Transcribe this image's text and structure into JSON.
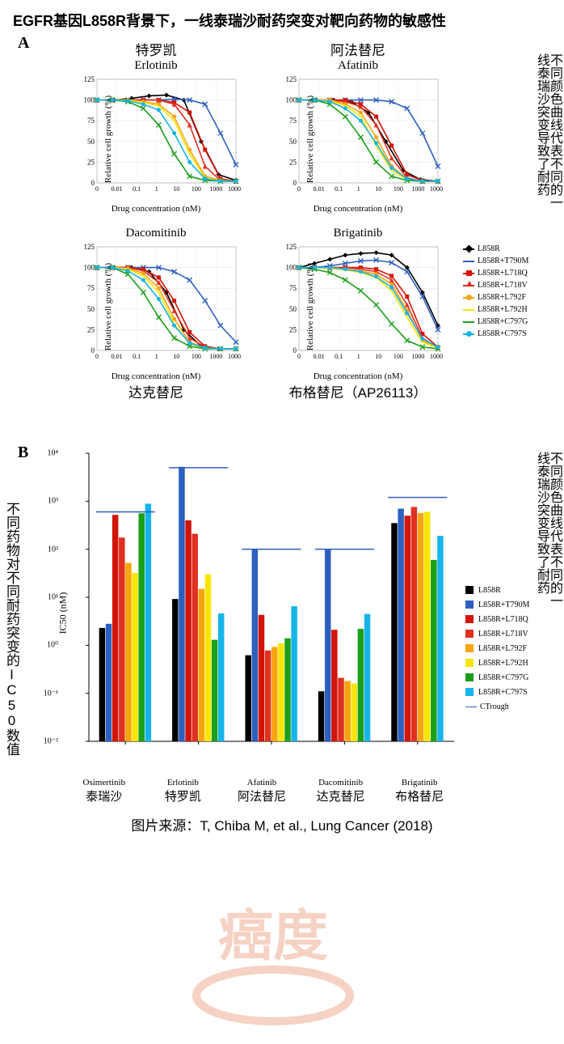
{
  "title": "EGFR基因L858R背景下，一线泰瑞沙耐药突变对靶向药物的敏感性",
  "panelA_label": "A",
  "panelB_label": "B",
  "side_note_text": "不同颜色曲线代表不同的一线泰瑞沙突变导致了耐药",
  "left_note_text": "不同药物对不同耐药突变的IC50数值",
  "source_label": "图片来源：T, Chiba M, et al., Lung Cancer (2018)",
  "watermark_text": "癌度",
  "watermark_color": "#e8906a",
  "axis": {
    "ylabel": "Relative cell growth (%)",
    "xlabel": "Drug concentration (nM)",
    "ylim": [
      0,
      125
    ],
    "yticks": [
      0,
      25,
      50,
      75,
      100,
      125
    ],
    "xlog_ticks": [
      "0",
      "0.01",
      "0.1",
      "1",
      "10",
      "100",
      "1000",
      "10000"
    ]
  },
  "series": [
    {
      "name": "L858R",
      "color": "#000000",
      "marker": "diamond"
    },
    {
      "name": "L858R+T790M",
      "color": "#2e5fbf",
      "marker": "x"
    },
    {
      "name": "L858R+L718Q",
      "color": "#d11507",
      "marker": "square"
    },
    {
      "name": "L858R+L718V",
      "color": "#e03020",
      "marker": "triangle"
    },
    {
      "name": "L858R+L792F",
      "color": "#f7a409",
      "marker": "circle"
    },
    {
      "name": "L858R+L792H",
      "color": "#f7e600",
      "marker": "none"
    },
    {
      "name": "L858R+C797G",
      "color": "#1aa01a",
      "marker": "x"
    },
    {
      "name": "L858R+C797S",
      "color": "#17b4e9",
      "marker": "circle"
    }
  ],
  "ctrough_label": "CTrough",
  "ctrough_color": "#2e5fbf",
  "panelA_charts": [
    {
      "title_cn": "特罗凯",
      "title_en": "Erlotinib",
      "bottom_cn": "",
      "curves": [
        [
          100,
          100,
          102,
          105,
          106,
          100,
          50,
          10,
          3
        ],
        [
          100,
          100,
          100,
          100,
          100,
          101,
          100,
          95,
          60,
          22
        ],
        [
          100,
          100,
          100,
          100,
          100,
          97,
          85,
          40,
          5,
          2
        ],
        [
          100,
          100,
          100,
          100,
          100,
          95,
          70,
          20,
          3,
          2
        ],
        [
          100,
          100,
          100,
          98,
          95,
          80,
          40,
          8,
          3,
          2
        ],
        [
          100,
          100,
          100,
          97,
          93,
          75,
          35,
          6,
          2,
          2
        ],
        [
          100,
          100,
          98,
          90,
          70,
          35,
          8,
          3,
          2,
          2
        ],
        [
          100,
          100,
          99,
          95,
          88,
          60,
          25,
          5,
          2,
          2
        ]
      ]
    },
    {
      "title_cn": "阿法替尼",
      "title_en": "Afatinib",
      "bottom_cn": "",
      "curves": [
        [
          100,
          100,
          100,
          98,
          85,
          50,
          15,
          4,
          2
        ],
        [
          100,
          100,
          100,
          100,
          100,
          100,
          98,
          90,
          60,
          20
        ],
        [
          100,
          100,
          100,
          100,
          95,
          80,
          45,
          10,
          3,
          2
        ],
        [
          100,
          100,
          100,
          98,
          92,
          70,
          30,
          6,
          2,
          2
        ],
        [
          100,
          100,
          100,
          95,
          85,
          55,
          20,
          5,
          2,
          2
        ],
        [
          100,
          100,
          99,
          93,
          80,
          45,
          15,
          4,
          2,
          2
        ],
        [
          100,
          100,
          95,
          80,
          55,
          25,
          8,
          3,
          2,
          2
        ],
        [
          100,
          100,
          98,
          90,
          75,
          48,
          18,
          5,
          2,
          2
        ]
      ]
    },
    {
      "title_cn": "",
      "title_en": "Dacomitinib",
      "bottom_cn": "达克替尼",
      "curves": [
        [
          100,
          100,
          100,
          95,
          70,
          25,
          5,
          2,
          2
        ],
        [
          100,
          100,
          100,
          100,
          100,
          95,
          85,
          60,
          30,
          10
        ],
        [
          100,
          100,
          100,
          98,
          88,
          60,
          22,
          5,
          2,
          2
        ],
        [
          100,
          100,
          100,
          96,
          82,
          48,
          15,
          4,
          2,
          2
        ],
        [
          100,
          100,
          99,
          93,
          75,
          38,
          10,
          3,
          2,
          2
        ],
        [
          100,
          100,
          98,
          90,
          70,
          32,
          8,
          2,
          2,
          2
        ],
        [
          100,
          100,
          92,
          70,
          40,
          15,
          5,
          2,
          2,
          2
        ],
        [
          100,
          100,
          96,
          85,
          62,
          30,
          9,
          3,
          2,
          2
        ]
      ]
    },
    {
      "title_cn": "",
      "title_en": "Brigatinib",
      "bottom_cn": "布格替尼（AP26113）",
      "curves": [
        [
          100,
          105,
          110,
          115,
          117,
          118,
          115,
          100,
          70,
          30
        ],
        [
          100,
          100,
          102,
          105,
          108,
          109,
          106,
          95,
          65,
          25
        ],
        [
          100,
          100,
          100,
          100,
          100,
          98,
          90,
          65,
          20,
          4
        ],
        [
          100,
          100,
          100,
          100,
          98,
          95,
          85,
          55,
          15,
          3
        ],
        [
          100,
          100,
          100,
          98,
          96,
          92,
          80,
          48,
          12,
          3
        ],
        [
          100,
          100,
          99,
          97,
          94,
          88,
          72,
          40,
          10,
          3
        ],
        [
          100,
          98,
          94,
          85,
          72,
          55,
          32,
          12,
          4,
          2
        ],
        [
          100,
          100,
          100,
          98,
          95,
          89,
          76,
          45,
          14,
          4
        ]
      ]
    }
  ],
  "panelB": {
    "ylabel": "IC50 (nM)",
    "ylog_min": -2,
    "ylog_max": 4,
    "ytick_labels": [
      "10⁻²",
      "10⁻¹",
      "10⁰",
      "10¹",
      "10²",
      "10³",
      "10⁴"
    ],
    "drugs": [
      {
        "en": "Osimertinib",
        "cn": "泰瑞沙",
        "ctr": 600,
        "vals": [
          2.3,
          2.8,
          520,
          175,
          52,
          32,
          560,
          890
        ]
      },
      {
        "en": "Erlotinib",
        "cn": "特罗凯",
        "ctr": 5000,
        "vals": [
          9.2,
          5200,
          400,
          210,
          15,
          30,
          1.3,
          4.6
        ]
      },
      {
        "en": "Afatinib",
        "cn": "阿法替尼",
        "ctr": 100,
        "vals": [
          0.62,
          102,
          4.3,
          0.78,
          0.92,
          1.1,
          1.4,
          6.5
        ]
      },
      {
        "en": "Dacomitinib",
        "cn": "达克替尼",
        "ctr": 100,
        "vals": [
          0.11,
          98,
          2.1,
          0.21,
          0.18,
          0.16,
          2.2,
          4.5
        ]
      },
      {
        "en": "Brigatinib",
        "cn": "布格替尼",
        "ctr": 1200,
        "vals": [
          350,
          700,
          500,
          760,
          570,
          600,
          60,
          190
        ]
      }
    ]
  }
}
